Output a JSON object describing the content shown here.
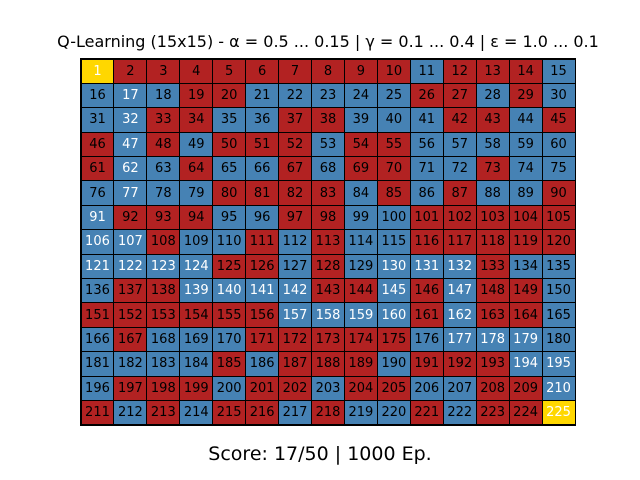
{
  "title": "Q-Learning (15x15) - α = 0.5 ... 0.15 | γ = 0.1 ... 0.4 | ε = 1.0 ... 0.1",
  "footer": "Score: 17/50 | 1000 Ep.",
  "grid": {
    "size": 15,
    "colors": {
      "B": "#4682b4",
      "R": "#b22222",
      "G": "#ffd700"
    },
    "rows": [
      "GRRRRRRRRRBRRRB",
      "BBBRRBBBBBRRBRB",
      "BBRRBBRRBBBRRBR",
      "RBRBRRRBRRBBBBB",
      "RBBRBBRBRRBBRBB",
      "BBBBRRRRBRBRBBR",
      "BRRRBBRRBBRRRRR",
      "BBRBBRBRBBRRRRR",
      "BBBBRRBRBBBBRBB",
      "BRRBBBBRRBRBRRB",
      "RRRRRRBBBBRBRRB",
      "BRBBBRRRRRBBBBB",
      "BBBBRBRRRBRRRBB",
      "BRRRBRRBRRBBRRB",
      "RBRBRRBRBBRBRRG"
    ],
    "white_text": [
      1,
      17,
      32,
      47,
      62,
      77,
      91,
      106,
      107,
      121,
      122,
      123,
      124,
      130,
      131,
      132,
      139,
      140,
      141,
      142,
      145,
      147,
      157,
      158,
      159,
      160,
      162,
      177,
      178,
      179,
      194,
      195,
      210,
      225
    ]
  }
}
